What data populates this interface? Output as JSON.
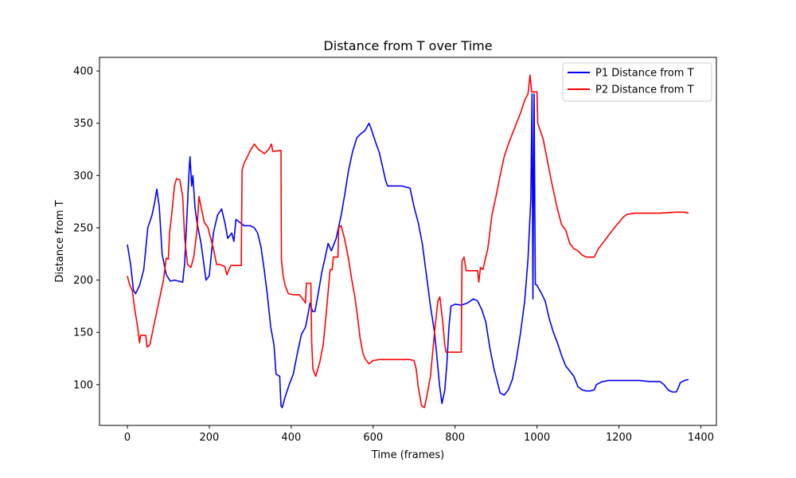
{
  "chart_data": {
    "type": "line",
    "title": "Distance from T over Time",
    "xlabel": "Time (frames)",
    "ylabel": "Distance from T",
    "xlim": [
      -68,
      1438
    ],
    "ylim": [
      61,
      413
    ],
    "xticks": [
      0,
      200,
      400,
      600,
      800,
      1000,
      1200,
      1400
    ],
    "yticks": [
      100,
      150,
      200,
      250,
      300,
      350,
      400
    ],
    "grid": false,
    "legend_position": "top-right",
    "series": [
      {
        "name": "P1 Distance from T",
        "color": "#0000ff",
        "points": [
          [
            0,
            234
          ],
          [
            8,
            215
          ],
          [
            15,
            190
          ],
          [
            20,
            187
          ],
          [
            30,
            195
          ],
          [
            40,
            210
          ],
          [
            50,
            250
          ],
          [
            60,
            262
          ],
          [
            66,
            273
          ],
          [
            72,
            287
          ],
          [
            78,
            270
          ],
          [
            85,
            225
          ],
          [
            95,
            205
          ],
          [
            105,
            199
          ],
          [
            115,
            200
          ],
          [
            125,
            199
          ],
          [
            135,
            198
          ],
          [
            140,
            216
          ],
          [
            146,
            265
          ],
          [
            150,
            300
          ],
          [
            153,
            318
          ],
          [
            157,
            290
          ],
          [
            160,
            300
          ],
          [
            165,
            270
          ],
          [
            170,
            255
          ],
          [
            180,
            235
          ],
          [
            192,
            200
          ],
          [
            200,
            204
          ],
          [
            210,
            245
          ],
          [
            220,
            262
          ],
          [
            230,
            268
          ],
          [
            238,
            255
          ],
          [
            245,
            240
          ],
          [
            255,
            245
          ],
          [
            260,
            237
          ],
          [
            265,
            258
          ],
          [
            275,
            255
          ],
          [
            285,
            252
          ],
          [
            300,
            252
          ],
          [
            310,
            250
          ],
          [
            318,
            245
          ],
          [
            326,
            232
          ],
          [
            334,
            210
          ],
          [
            342,
            185
          ],
          [
            350,
            155
          ],
          [
            358,
            138
          ],
          [
            363,
            110
          ],
          [
            372,
            108
          ],
          [
            375,
            80
          ],
          [
            378,
            78
          ],
          [
            385,
            88
          ],
          [
            395,
            100
          ],
          [
            405,
            110
          ],
          [
            415,
            130
          ],
          [
            425,
            148
          ],
          [
            435,
            155
          ],
          [
            440,
            165
          ],
          [
            446,
            178
          ],
          [
            452,
            170
          ],
          [
            458,
            170
          ],
          [
            465,
            185
          ],
          [
            475,
            208
          ],
          [
            482,
            220
          ],
          [
            490,
            235
          ],
          [
            498,
            228
          ],
          [
            510,
            240
          ],
          [
            518,
            255
          ],
          [
            522,
            262
          ],
          [
            530,
            280
          ],
          [
            540,
            305
          ],
          [
            550,
            323
          ],
          [
            560,
            336
          ],
          [
            570,
            340
          ],
          [
            580,
            343
          ],
          [
            590,
            350
          ],
          [
            595,
            345
          ],
          [
            605,
            333
          ],
          [
            615,
            322
          ],
          [
            625,
            305
          ],
          [
            630,
            296
          ],
          [
            635,
            290
          ],
          [
            650,
            290
          ],
          [
            670,
            290
          ],
          [
            680,
            289
          ],
          [
            690,
            288
          ],
          [
            700,
            270
          ],
          [
            710,
            255
          ],
          [
            720,
            235
          ],
          [
            730,
            205
          ],
          [
            740,
            175
          ],
          [
            750,
            150
          ],
          [
            755,
            130
          ],
          [
            762,
            100
          ],
          [
            768,
            82
          ],
          [
            775,
            95
          ],
          [
            780,
            120
          ],
          [
            785,
            155
          ],
          [
            790,
            175
          ],
          [
            800,
            177
          ],
          [
            815,
            176
          ],
          [
            830,
            178
          ],
          [
            845,
            182
          ],
          [
            855,
            180
          ],
          [
            865,
            172
          ],
          [
            875,
            160
          ],
          [
            885,
            135
          ],
          [
            895,
            115
          ],
          [
            905,
            100
          ],
          [
            910,
            92
          ],
          [
            920,
            90
          ],
          [
            930,
            95
          ],
          [
            940,
            105
          ],
          [
            950,
            125
          ],
          [
            960,
            150
          ],
          [
            970,
            180
          ],
          [
            978,
            220
          ],
          [
            985,
            278
          ],
          [
            988,
            378
          ],
          [
            990,
            182
          ],
          [
            993,
            378
          ],
          [
            996,
            196
          ],
          [
            1000,
            195
          ],
          [
            1010,
            188
          ],
          [
            1020,
            180
          ],
          [
            1030,
            163
          ],
          [
            1040,
            150
          ],
          [
            1050,
            140
          ],
          [
            1060,
            128
          ],
          [
            1070,
            118
          ],
          [
            1080,
            113
          ],
          [
            1090,
            108
          ],
          [
            1100,
            98
          ],
          [
            1110,
            95
          ],
          [
            1120,
            94
          ],
          [
            1130,
            94
          ],
          [
            1140,
            95
          ],
          [
            1145,
            100
          ],
          [
            1160,
            103
          ],
          [
            1175,
            104
          ],
          [
            1200,
            104
          ],
          [
            1225,
            104
          ],
          [
            1250,
            104
          ],
          [
            1275,
            103
          ],
          [
            1300,
            103
          ],
          [
            1310,
            100
          ],
          [
            1320,
            95
          ],
          [
            1330,
            93
          ],
          [
            1340,
            93
          ],
          [
            1345,
            97
          ],
          [
            1350,
            102
          ],
          [
            1360,
            104
          ],
          [
            1370,
            105
          ]
        ]
      },
      {
        "name": "P2 Distance from T",
        "color": "#ff0000",
        "points": [
          [
            0,
            204
          ],
          [
            5,
            196
          ],
          [
            12,
            190
          ],
          [
            18,
            172
          ],
          [
            25,
            155
          ],
          [
            30,
            140
          ],
          [
            32,
            147
          ],
          [
            45,
            147
          ],
          [
            48,
            136
          ],
          [
            55,
            138
          ],
          [
            65,
            157
          ],
          [
            72,
            170
          ],
          [
            80,
            185
          ],
          [
            88,
            200
          ],
          [
            95,
            221
          ],
          [
            100,
            220
          ],
          [
            103,
            245
          ],
          [
            108,
            262
          ],
          [
            115,
            290
          ],
          [
            120,
            297
          ],
          [
            128,
            296
          ],
          [
            135,
            280
          ],
          [
            140,
            240
          ],
          [
            147,
            215
          ],
          [
            155,
            212
          ],
          [
            162,
            222
          ],
          [
            170,
            248
          ],
          [
            175,
            280
          ],
          [
            180,
            270
          ],
          [
            188,
            255
          ],
          [
            197,
            250
          ],
          [
            200,
            245
          ],
          [
            205,
            238
          ],
          [
            210,
            230
          ],
          [
            218,
            215
          ],
          [
            225,
            215
          ],
          [
            238,
            213
          ],
          [
            243,
            205
          ],
          [
            248,
            210
          ],
          [
            253,
            214
          ],
          [
            278,
            214
          ],
          [
            280,
            305
          ],
          [
            285,
            312
          ],
          [
            293,
            318
          ],
          [
            300,
            324
          ],
          [
            310,
            330
          ],
          [
            320,
            325
          ],
          [
            335,
            321
          ],
          [
            345,
            325
          ],
          [
            352,
            330
          ],
          [
            355,
            323
          ],
          [
            375,
            324
          ],
          [
            376,
            220
          ],
          [
            380,
            205
          ],
          [
            385,
            195
          ],
          [
            393,
            187
          ],
          [
            405,
            186
          ],
          [
            420,
            186
          ],
          [
            430,
            181
          ],
          [
            435,
            178
          ],
          [
            437,
            197
          ],
          [
            448,
            197
          ],
          [
            450,
            140
          ],
          [
            453,
            115
          ],
          [
            460,
            108
          ],
          [
            470,
            122
          ],
          [
            478,
            138
          ],
          [
            486,
            170
          ],
          [
            495,
            210
          ],
          [
            500,
            210
          ],
          [
            503,
            222
          ],
          [
            514,
            222
          ],
          [
            516,
            250
          ],
          [
            522,
            252
          ],
          [
            530,
            240
          ],
          [
            540,
            220
          ],
          [
            548,
            200
          ],
          [
            555,
            185
          ],
          [
            562,
            165
          ],
          [
            568,
            145
          ],
          [
            575,
            130
          ],
          [
            580,
            125
          ],
          [
            590,
            120
          ],
          [
            600,
            123
          ],
          [
            615,
            124
          ],
          [
            640,
            124
          ],
          [
            665,
            124
          ],
          [
            690,
            124
          ],
          [
            700,
            123
          ],
          [
            705,
            115
          ],
          [
            710,
            98
          ],
          [
            718,
            80
          ],
          [
            725,
            78
          ],
          [
            730,
            87
          ],
          [
            740,
            108
          ],
          [
            750,
            150
          ],
          [
            758,
            180
          ],
          [
            763,
            184
          ],
          [
            770,
            160
          ],
          [
            775,
            138
          ],
          [
            778,
            131
          ],
          [
            815,
            131
          ],
          [
            817,
            218
          ],
          [
            822,
            222
          ],
          [
            827,
            209
          ],
          [
            855,
            209
          ],
          [
            858,
            198
          ],
          [
            862,
            212
          ],
          [
            868,
            210
          ],
          [
            875,
            222
          ],
          [
            880,
            230
          ],
          [
            890,
            262
          ],
          [
            900,
            280
          ],
          [
            910,
            300
          ],
          [
            920,
            318
          ],
          [
            930,
            330
          ],
          [
            945,
            345
          ],
          [
            960,
            360
          ],
          [
            970,
            372
          ],
          [
            978,
            378
          ],
          [
            983,
            396
          ],
          [
            987,
            380
          ],
          [
            1000,
            380
          ],
          [
            1002,
            350
          ],
          [
            1015,
            335
          ],
          [
            1025,
            315
          ],
          [
            1035,
            295
          ],
          [
            1050,
            268
          ],
          [
            1060,
            253
          ],
          [
            1070,
            248
          ],
          [
            1080,
            235
          ],
          [
            1090,
            230
          ],
          [
            1100,
            228
          ],
          [
            1110,
            224
          ],
          [
            1120,
            222
          ],
          [
            1140,
            222
          ],
          [
            1150,
            230
          ],
          [
            1160,
            235
          ],
          [
            1175,
            243
          ],
          [
            1185,
            248
          ],
          [
            1195,
            253
          ],
          [
            1200,
            255
          ],
          [
            1210,
            260
          ],
          [
            1220,
            263
          ],
          [
            1240,
            264
          ],
          [
            1300,
            264
          ],
          [
            1340,
            265
          ],
          [
            1360,
            265
          ],
          [
            1370,
            264
          ]
        ]
      }
    ]
  }
}
